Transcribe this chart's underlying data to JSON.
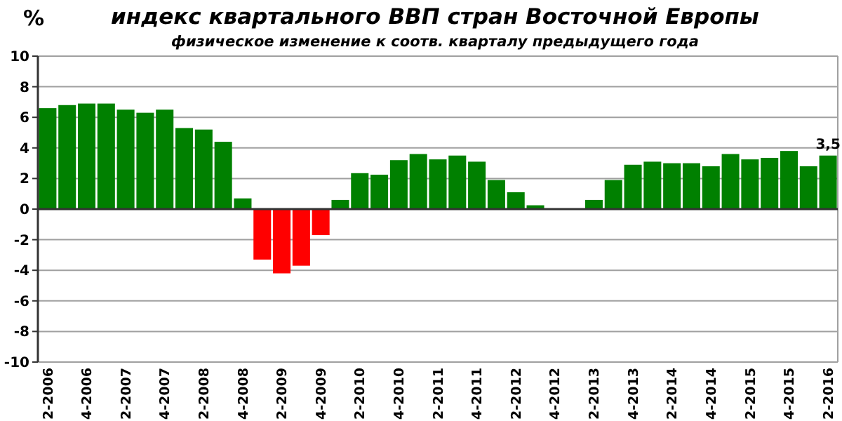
{
  "chart_data": {
    "type": "bar",
    "title": "индекс квартального ВВП стран Восточной Европы",
    "subtitle": "физическое изменение к соотв. кварталу  предыдущего года",
    "ylabel": "%",
    "categories": [
      "2-2006",
      null,
      "4-2006",
      null,
      "2-2007",
      null,
      "4-2007",
      null,
      "2-2008",
      null,
      "4-2008",
      null,
      "2-2009",
      null,
      "4-2009",
      null,
      "2-2010",
      null,
      "4-2010",
      null,
      "2-2011",
      null,
      "4-2011",
      null,
      "2-2012",
      null,
      "4-2012",
      null,
      "2-2013",
      null,
      "4-2013",
      null,
      "2-2014",
      null,
      "4-2014",
      null,
      "2-2015",
      null,
      "4-2015",
      null,
      "2-2016"
    ],
    "values": [
      6.6,
      6.8,
      6.9,
      6.9,
      6.5,
      6.3,
      6.5,
      5.3,
      5.2,
      4.4,
      0.7,
      -3.3,
      -4.2,
      -3.7,
      -1.7,
      0.6,
      2.35,
      2.25,
      3.2,
      3.6,
      3.25,
      3.5,
      3.1,
      1.9,
      1.1,
      0.25,
      0,
      0,
      0.6,
      1.9,
      2.9,
      3.1,
      3.0,
      3.0,
      2.8,
      3.6,
      3.25,
      3.35,
      3.8,
      2.8,
      3.5
    ],
    "colors": [
      "#008000",
      "#008000",
      "#008000",
      "#008000",
      "#008000",
      "#008000",
      "#008000",
      "#008000",
      "#008000",
      "#008000",
      "#008000",
      "#ff0000",
      "#ff0000",
      "#ff0000",
      "#ff0000",
      "#008000",
      "#008000",
      "#008000",
      "#008000",
      "#008000",
      "#008000",
      "#008000",
      "#008000",
      "#008000",
      "#008000",
      "#008000",
      "#008000",
      "#008000",
      "#008000",
      "#008000",
      "#008000",
      "#008000",
      "#008000",
      "#008000",
      "#008000",
      "#008000",
      "#008000",
      "#008000",
      "#008000",
      "#008000",
      "#008000"
    ],
    "value_labels": [
      null,
      null,
      null,
      null,
      null,
      null,
      null,
      null,
      null,
      null,
      null,
      null,
      null,
      null,
      null,
      null,
      null,
      null,
      null,
      null,
      null,
      null,
      null,
      null,
      null,
      null,
      null,
      null,
      null,
      null,
      null,
      null,
      null,
      null,
      null,
      null,
      null,
      null,
      null,
      null,
      "3,5"
    ],
    "ylim": [
      -10,
      10
    ],
    "yticks": [
      -10,
      -8,
      -6,
      -4,
      -2,
      0,
      2,
      4,
      6,
      8,
      10
    ],
    "grid": "y"
  }
}
